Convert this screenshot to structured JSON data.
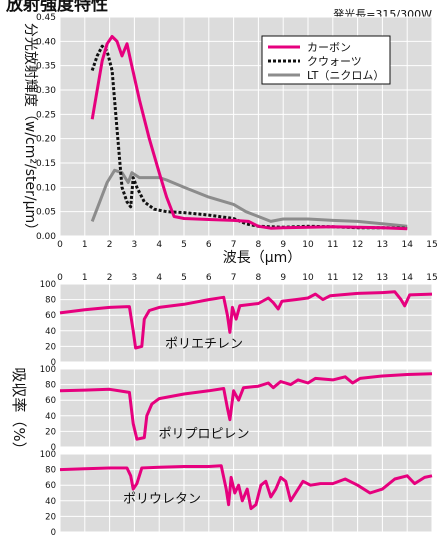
{
  "title": "放射強度特性",
  "note": "発光長=315/300W",
  "colors": {
    "carbon": "#e6007e",
    "quartz": "#111111",
    "nichrome": "#8c8c8c",
    "grid_bg": "#dcdcdc",
    "grid_line": "#ffffff"
  },
  "chart_data": [
    {
      "type": "line",
      "title": "放射強度特性",
      "xlabel": "波長（μm）",
      "ylabel": "分光放射輝度（w/cm²/ster/μm）",
      "xlim": [
        0,
        15
      ],
      "ylim": [
        0,
        0.45
      ],
      "xticks": [
        "0",
        "1",
        "2",
        "3",
        "4",
        "5",
        "6",
        "7",
        "8",
        "9",
        "10",
        "11",
        "12",
        "13",
        "14",
        "15"
      ],
      "yticks": [
        "0.00",
        "0.05",
        "0.10",
        "0.15",
        "0.20",
        "0.25",
        "0.30",
        "0.35",
        "0.40",
        "0.45"
      ],
      "grid": true,
      "legend_position": "top-right",
      "series": [
        {
          "name": "カーボン",
          "style": "solid",
          "points": [
            [
              1.3,
              0.24
            ],
            [
              1.5,
              0.3
            ],
            [
              1.7,
              0.36
            ],
            [
              1.9,
              0.395
            ],
            [
              2.1,
              0.41
            ],
            [
              2.3,
              0.4
            ],
            [
              2.5,
              0.37
            ],
            [
              2.7,
              0.395
            ],
            [
              2.85,
              0.36
            ],
            [
              3.2,
              0.28
            ],
            [
              3.6,
              0.2
            ],
            [
              4.0,
              0.13
            ],
            [
              4.3,
              0.08
            ],
            [
              4.6,
              0.04
            ],
            [
              5.0,
              0.036
            ],
            [
              6.0,
              0.034
            ],
            [
              7.0,
              0.032
            ],
            [
              7.6,
              0.03
            ],
            [
              8.0,
              0.02
            ],
            [
              8.5,
              0.016
            ],
            [
              9.0,
              0.017
            ],
            [
              10.0,
              0.018
            ],
            [
              11.0,
              0.019
            ],
            [
              12.0,
              0.018
            ],
            [
              13.0,
              0.017
            ],
            [
              14.0,
              0.015
            ]
          ]
        },
        {
          "name": "クウォーツ",
          "style": "dotted",
          "points": [
            [
              1.3,
              0.34
            ],
            [
              1.5,
              0.37
            ],
            [
              1.7,
              0.39
            ],
            [
              1.9,
              0.38
            ],
            [
              2.1,
              0.34
            ],
            [
              2.3,
              0.22
            ],
            [
              2.5,
              0.1
            ],
            [
              2.7,
              0.07
            ],
            [
              2.85,
              0.06
            ],
            [
              2.95,
              0.12
            ],
            [
              3.1,
              0.1
            ],
            [
              3.4,
              0.07
            ],
            [
              3.8,
              0.055
            ],
            [
              4.3,
              0.05
            ],
            [
              5.0,
              0.048
            ],
            [
              6.0,
              0.043
            ],
            [
              7.0,
              0.036
            ],
            [
              7.5,
              0.025
            ],
            [
              8.0,
              0.02
            ],
            [
              9.0,
              0.018
            ],
            [
              10.0,
              0.02
            ],
            [
              11.0,
              0.019
            ],
            [
              12.0,
              0.017
            ],
            [
              13.0,
              0.017
            ],
            [
              14.0,
              0.016
            ]
          ]
        },
        {
          "name": "LT（ニクロム）",
          "style": "solid",
          "points": [
            [
              1.3,
              0.03
            ],
            [
              1.6,
              0.07
            ],
            [
              1.9,
              0.11
            ],
            [
              2.2,
              0.135
            ],
            [
              2.5,
              0.13
            ],
            [
              2.75,
              0.11
            ],
            [
              2.9,
              0.13
            ],
            [
              3.2,
              0.12
            ],
            [
              4.0,
              0.12
            ],
            [
              4.3,
              0.115
            ],
            [
              5.0,
              0.1
            ],
            [
              6.0,
              0.08
            ],
            [
              7.0,
              0.065
            ],
            [
              7.5,
              0.05
            ],
            [
              8.0,
              0.04
            ],
            [
              8.5,
              0.03
            ],
            [
              9.0,
              0.035
            ],
            [
              10.0,
              0.035
            ],
            [
              11.0,
              0.032
            ],
            [
              12.0,
              0.03
            ],
            [
              13.0,
              0.025
            ],
            [
              14.0,
              0.02
            ]
          ]
        }
      ]
    },
    {
      "type": "line",
      "title": "",
      "xlabel": "",
      "ylabel": "吸収率（%）",
      "xlim": [
        0,
        15
      ],
      "xticks": [
        "0",
        "1",
        "2",
        "3",
        "4",
        "5",
        "6",
        "7",
        "8",
        "9",
        "10",
        "11",
        "12",
        "13",
        "14",
        "15"
      ],
      "panel_yticks": [
        "0",
        "20",
        "40",
        "60",
        "80",
        "100"
      ],
      "ylim": [
        0,
        100
      ],
      "grid": true,
      "panels": [
        {
          "name": "ポリエチレン",
          "points": [
            [
              0,
              63
            ],
            [
              1,
              67
            ],
            [
              2,
              70
            ],
            [
              2.8,
              71
            ],
            [
              2.95,
              40
            ],
            [
              3.05,
              18
            ],
            [
              3.3,
              20
            ],
            [
              3.4,
              55
            ],
            [
              3.6,
              66
            ],
            [
              4,
              70
            ],
            [
              5,
              74
            ],
            [
              6,
              80
            ],
            [
              6.6,
              83
            ],
            [
              6.75,
              60
            ],
            [
              6.85,
              38
            ],
            [
              6.95,
              70
            ],
            [
              7.1,
              55
            ],
            [
              7.25,
              72
            ],
            [
              8,
              75
            ],
            [
              8.4,
              82
            ],
            [
              8.6,
              76
            ],
            [
              8.8,
              68
            ],
            [
              8.95,
              78
            ],
            [
              9.5,
              80
            ],
            [
              10,
              82
            ],
            [
              10.3,
              87
            ],
            [
              10.6,
              80
            ],
            [
              10.9,
              85
            ],
            [
              12,
              88
            ],
            [
              13,
              89
            ],
            [
              13.5,
              90
            ],
            [
              13.75,
              80
            ],
            [
              13.9,
              72
            ],
            [
              14.1,
              86
            ],
            [
              15,
              87
            ]
          ]
        },
        {
          "name": "ポリプロピレン",
          "points": [
            [
              0,
              72
            ],
            [
              1,
              73
            ],
            [
              2,
              74
            ],
            [
              2.8,
              70
            ],
            [
              2.95,
              30
            ],
            [
              3.1,
              10
            ],
            [
              3.4,
              12
            ],
            [
              3.5,
              40
            ],
            [
              3.7,
              55
            ],
            [
              4,
              62
            ],
            [
              5,
              68
            ],
            [
              6,
              72
            ],
            [
              6.6,
              75
            ],
            [
              6.75,
              50
            ],
            [
              6.85,
              35
            ],
            [
              7.0,
              72
            ],
            [
              7.2,
              60
            ],
            [
              7.4,
              76
            ],
            [
              8,
              78
            ],
            [
              8.4,
              82
            ],
            [
              8.6,
              76
            ],
            [
              8.9,
              84
            ],
            [
              9.3,
              80
            ],
            [
              9.6,
              86
            ],
            [
              10,
              82
            ],
            [
              10.3,
              88
            ],
            [
              11,
              86
            ],
            [
              11.5,
              90
            ],
            [
              11.8,
              82
            ],
            [
              12.1,
              88
            ],
            [
              13,
              91
            ],
            [
              14,
              93
            ],
            [
              15,
              94
            ]
          ]
        },
        {
          "name": "ポリウレタン",
          "points": [
            [
              0,
              80
            ],
            [
              1,
              81
            ],
            [
              2,
              82
            ],
            [
              2.7,
              82
            ],
            [
              2.85,
              72
            ],
            [
              2.95,
              55
            ],
            [
              3.1,
              62
            ],
            [
              3.3,
              82
            ],
            [
              4,
              83
            ],
            [
              5,
              84
            ],
            [
              6,
              84
            ],
            [
              6.5,
              85
            ],
            [
              6.7,
              55
            ],
            [
              6.8,
              35
            ],
            [
              6.9,
              70
            ],
            [
              7.05,
              50
            ],
            [
              7.2,
              60
            ],
            [
              7.35,
              40
            ],
            [
              7.55,
              55
            ],
            [
              7.7,
              30
            ],
            [
              7.9,
              35
            ],
            [
              8.1,
              60
            ],
            [
              8.3,
              65
            ],
            [
              8.5,
              45
            ],
            [
              8.7,
              55
            ],
            [
              8.9,
              70
            ],
            [
              9.1,
              65
            ],
            [
              9.3,
              40
            ],
            [
              9.5,
              50
            ],
            [
              9.8,
              65
            ],
            [
              10.1,
              60
            ],
            [
              10.5,
              62
            ],
            [
              11,
              62
            ],
            [
              11.5,
              68
            ],
            [
              12,
              60
            ],
            [
              12.5,
              50
            ],
            [
              13,
              55
            ],
            [
              13.5,
              68
            ],
            [
              14,
              72
            ],
            [
              14.3,
              62
            ],
            [
              14.7,
              70
            ],
            [
              15,
              72
            ]
          ]
        }
      ]
    }
  ]
}
